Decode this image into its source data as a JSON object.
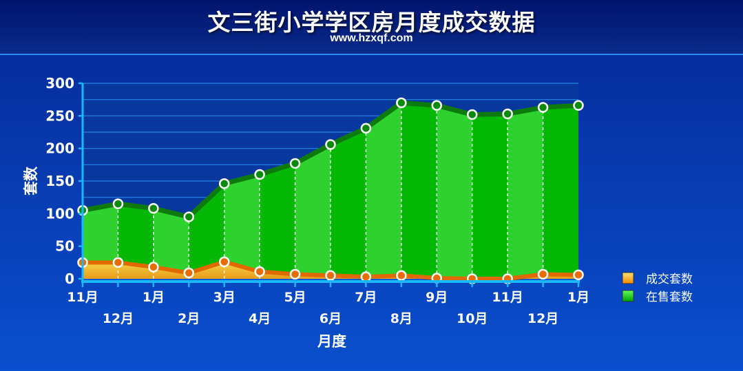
{
  "title": "文三街小学学区房月度成交数据",
  "subtitle": "www.hzxqf.com",
  "chart_data": {
    "type": "area",
    "x": [
      "11月",
      "12月",
      "1月",
      "2月",
      "3月",
      "4月",
      "5月",
      "6月",
      "7月",
      "8月",
      "9月",
      "10月",
      "11月",
      "12月",
      "1月"
    ],
    "series": [
      {
        "name": "在售套数",
        "color": "#00c000",
        "values": [
          105,
          115,
          108,
          95,
          146,
          160,
          177,
          206,
          231,
          270,
          266,
          252,
          253,
          263,
          266
        ]
      },
      {
        "name": "成交套数",
        "color": "#f08a00",
        "values": [
          25,
          25,
          18,
          9,
          26,
          11,
          7,
          5,
          3,
          5,
          1,
          0,
          0,
          7,
          6
        ]
      }
    ],
    "xlabel": "月度",
    "ylabel": "套数",
    "ylim": [
      0,
      300
    ],
    "yticks": [
      0,
      50,
      100,
      150,
      200,
      250,
      300
    ],
    "grid": true,
    "legend": "bottom-right"
  }
}
